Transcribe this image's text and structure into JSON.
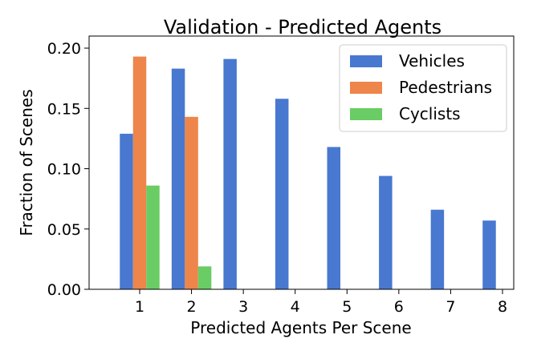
{
  "chart_data": {
    "type": "bar",
    "title": "Validation - Predicted Agents",
    "xlabel": "Predicted Agents Per Scene",
    "ylabel": "Fraction of Scenes",
    "categories": [
      "1",
      "2",
      "3",
      "4",
      "5",
      "6",
      "7",
      "8"
    ],
    "ylim": [
      0,
      0.21
    ],
    "yticks": [
      "0.00",
      "0.05",
      "0.10",
      "0.15",
      "0.20"
    ],
    "grid": false,
    "legend_position": "top-right",
    "series": [
      {
        "name": "Vehicles",
        "color": "#4878d0",
        "values": [
          0.129,
          0.183,
          0.191,
          0.158,
          0.118,
          0.094,
          0.066,
          0.057
        ]
      },
      {
        "name": "Pedestrians",
        "color": "#ee854a",
        "values": [
          0.193,
          0.143,
          0,
          0,
          0,
          0,
          0,
          0
        ]
      },
      {
        "name": "Cyclists",
        "color": "#6acc64",
        "values": [
          0.086,
          0.019,
          0,
          0,
          0,
          0,
          0,
          0
        ]
      }
    ]
  }
}
